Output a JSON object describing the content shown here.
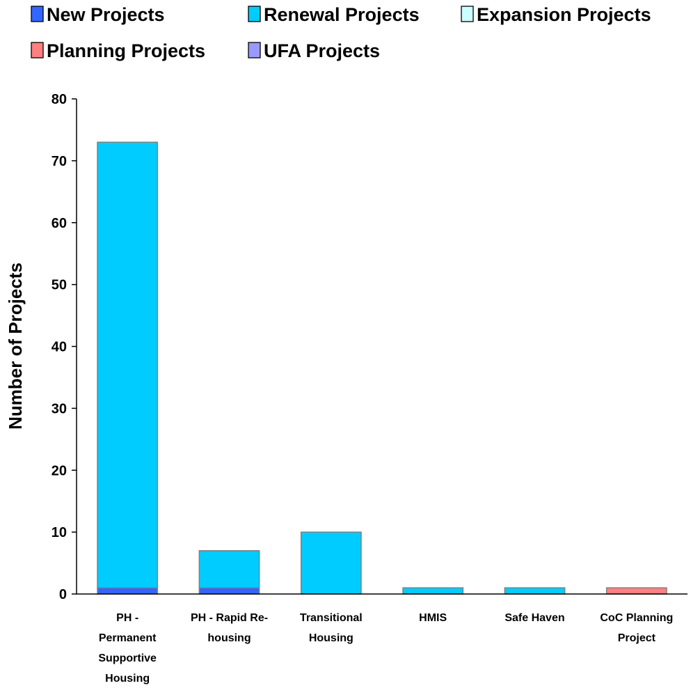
{
  "chart_data": {
    "type": "bar",
    "stacked": true,
    "ylabel": "Number of Projects",
    "ylim": [
      0,
      80
    ],
    "yticks": [
      "0",
      "10",
      "20",
      "30",
      "40",
      "50",
      "60",
      "70",
      "80"
    ],
    "grid": false,
    "legend_position": "top",
    "categories": [
      [
        "PH -",
        "Permanent",
        "Supportive",
        "Housing"
      ],
      [
        "PH - Rapid Re-",
        "housing"
      ],
      [
        "Transitional",
        "Housing"
      ],
      [
        "HMIS"
      ],
      [
        "Safe Haven"
      ],
      [
        "CoC Planning",
        "Project"
      ]
    ],
    "series": [
      {
        "name": "New Projects",
        "color": "#3366FF",
        "values": [
          1,
          1,
          0,
          0,
          0,
          0
        ]
      },
      {
        "name": "Renewal Projects",
        "color": "#00CCFF",
        "values": [
          72,
          6,
          10,
          1,
          1,
          0
        ]
      },
      {
        "name": "Expansion Projects",
        "color": "#CCFFFF",
        "values": [
          0,
          0,
          0,
          0,
          0,
          0
        ]
      },
      {
        "name": "Planning Projects",
        "color": "#FF8080",
        "values": [
          0,
          0,
          0,
          0,
          0,
          1
        ]
      },
      {
        "name": "UFA Projects",
        "color": "#9999FF",
        "values": [
          0,
          0,
          0,
          0,
          0,
          0
        ]
      }
    ]
  }
}
